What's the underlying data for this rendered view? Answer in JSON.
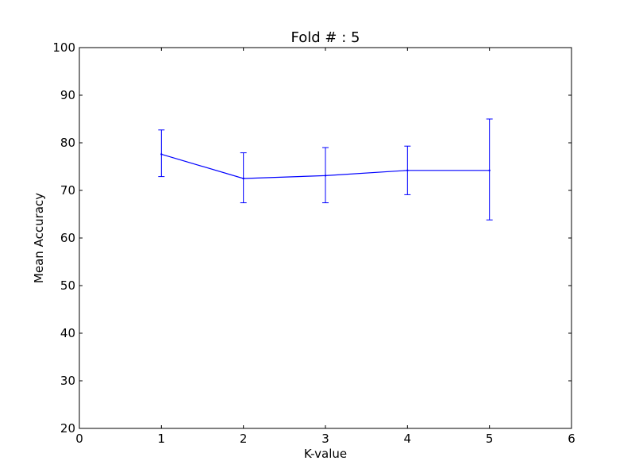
{
  "chart_data": {
    "type": "line",
    "title": "Fold # : 5",
    "xlabel": "K-value",
    "ylabel": "Mean Accuracy",
    "xlim": [
      0,
      6
    ],
    "ylim": [
      20,
      100
    ],
    "xticks": [
      0,
      1,
      2,
      3,
      4,
      5,
      6
    ],
    "yticks": [
      20,
      30,
      40,
      50,
      60,
      70,
      80,
      90,
      100
    ],
    "grid": false,
    "series": [
      {
        "color": "#0000ff",
        "x": [
          1,
          2,
          3,
          4,
          5
        ],
        "y": [
          77.6,
          72.5,
          73.1,
          74.2,
          74.2
        ],
        "error_low": [
          72.9,
          67.4,
          67.4,
          69.1,
          63.8
        ],
        "error_high": [
          82.7,
          77.9,
          79.0,
          79.3,
          85.0
        ]
      }
    ]
  }
}
